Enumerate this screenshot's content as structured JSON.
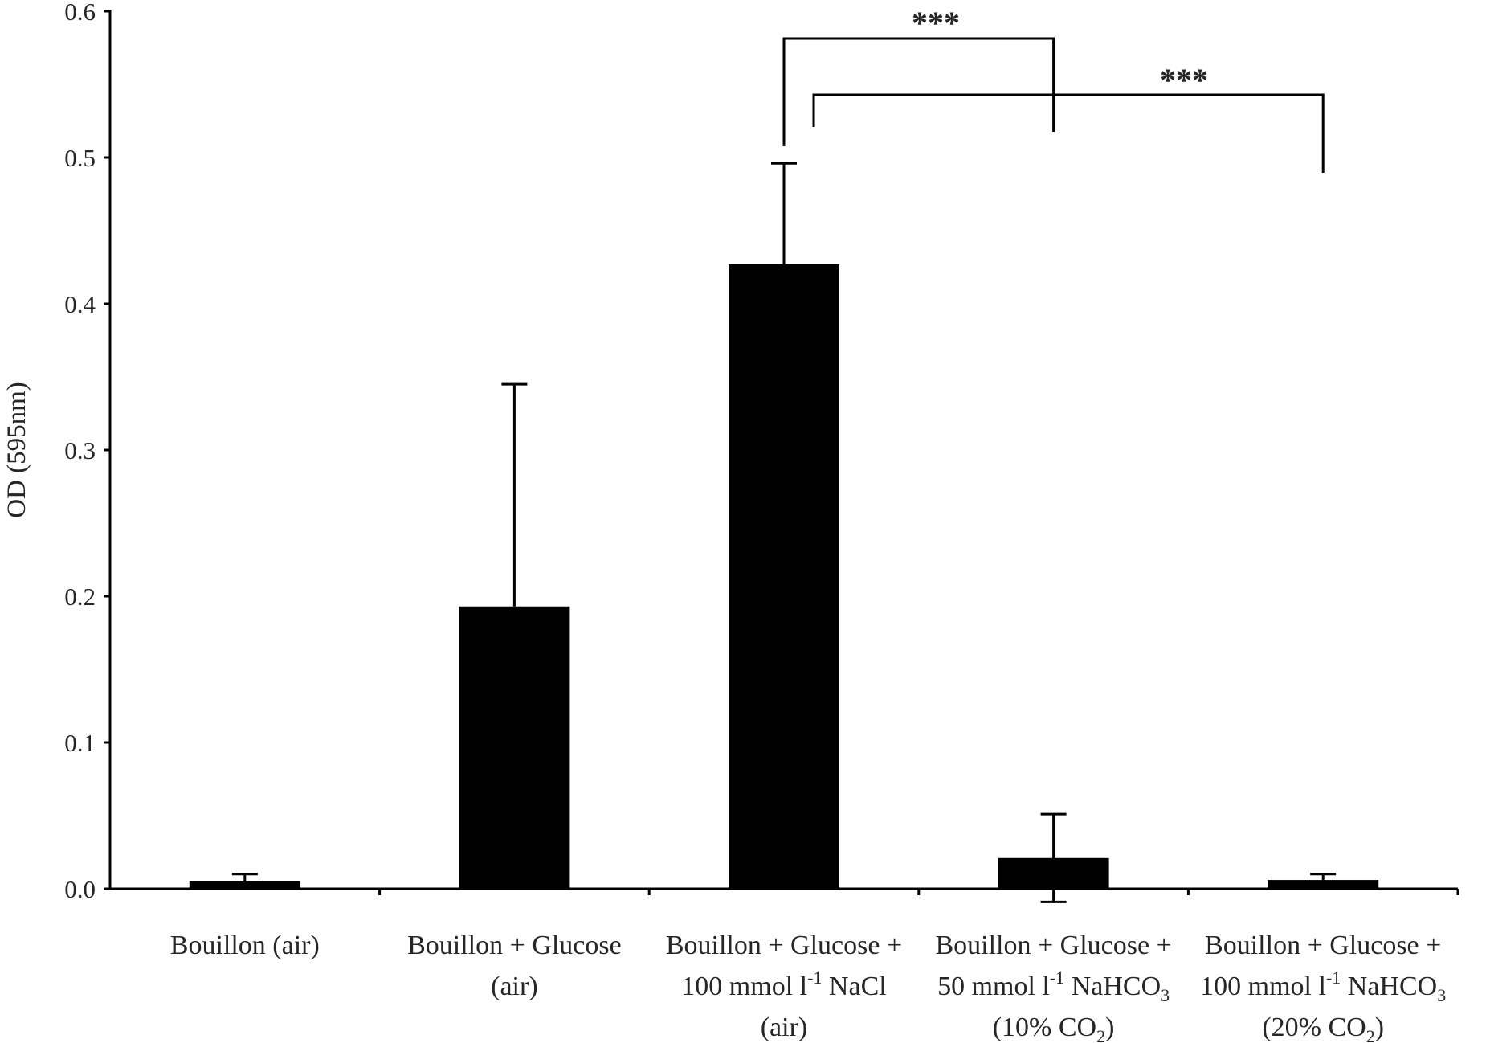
{
  "chart_data": {
    "type": "bar",
    "ylabel": "OD (595nm)",
    "xlabel": "",
    "ylim": [
      0,
      0.6
    ],
    "yticks": [
      "0.0",
      "0.1",
      "0.2",
      "0.3",
      "0.4",
      "0.5",
      "0.6"
    ],
    "grid": false,
    "legend": "none",
    "bar_color": "#000000",
    "categories": [
      {
        "lines": [
          {
            "t": "Bouillon  (air)"
          }
        ]
      },
      {
        "lines": [
          {
            "t": "Bouillon  + Glucose"
          },
          {
            "t": "(air)"
          }
        ]
      },
      {
        "lines": [
          {
            "t": "Bouillon  + Glucose +"
          },
          {
            "t": "100 mmol l",
            "sup": "-1",
            "rest": " NaCl"
          },
          {
            "t": "(air)"
          }
        ]
      },
      {
        "lines": [
          {
            "t": "Bouillon  + Glucose +"
          },
          {
            "t": "50 mmol l",
            "sup": "-1",
            "rest": " NaHCO",
            "sub": "3"
          },
          {
            "t": "(10% CO",
            "sub": "2",
            "rest2": ")"
          }
        ]
      },
      {
        "lines": [
          {
            "t": "Bouillon  + Glucose +"
          },
          {
            "t": "100 mmol l",
            "sup": "-1",
            "rest": " NaHCO",
            "sub": "3"
          },
          {
            "t": "(20% CO",
            "sub": "2",
            "rest2": ")"
          }
        ]
      }
    ],
    "values": [
      0.005,
      0.193,
      0.427,
      0.021,
      0.006
    ],
    "errors": [
      0.005,
      0.152,
      0.069,
      0.03,
      0.004
    ],
    "error_lower_shown": [
      false,
      false,
      false,
      true,
      false
    ],
    "significance": [
      {
        "from": 2,
        "to": 3,
        "label": "***"
      },
      {
        "from": 2,
        "to": 4,
        "label": "***"
      }
    ]
  }
}
